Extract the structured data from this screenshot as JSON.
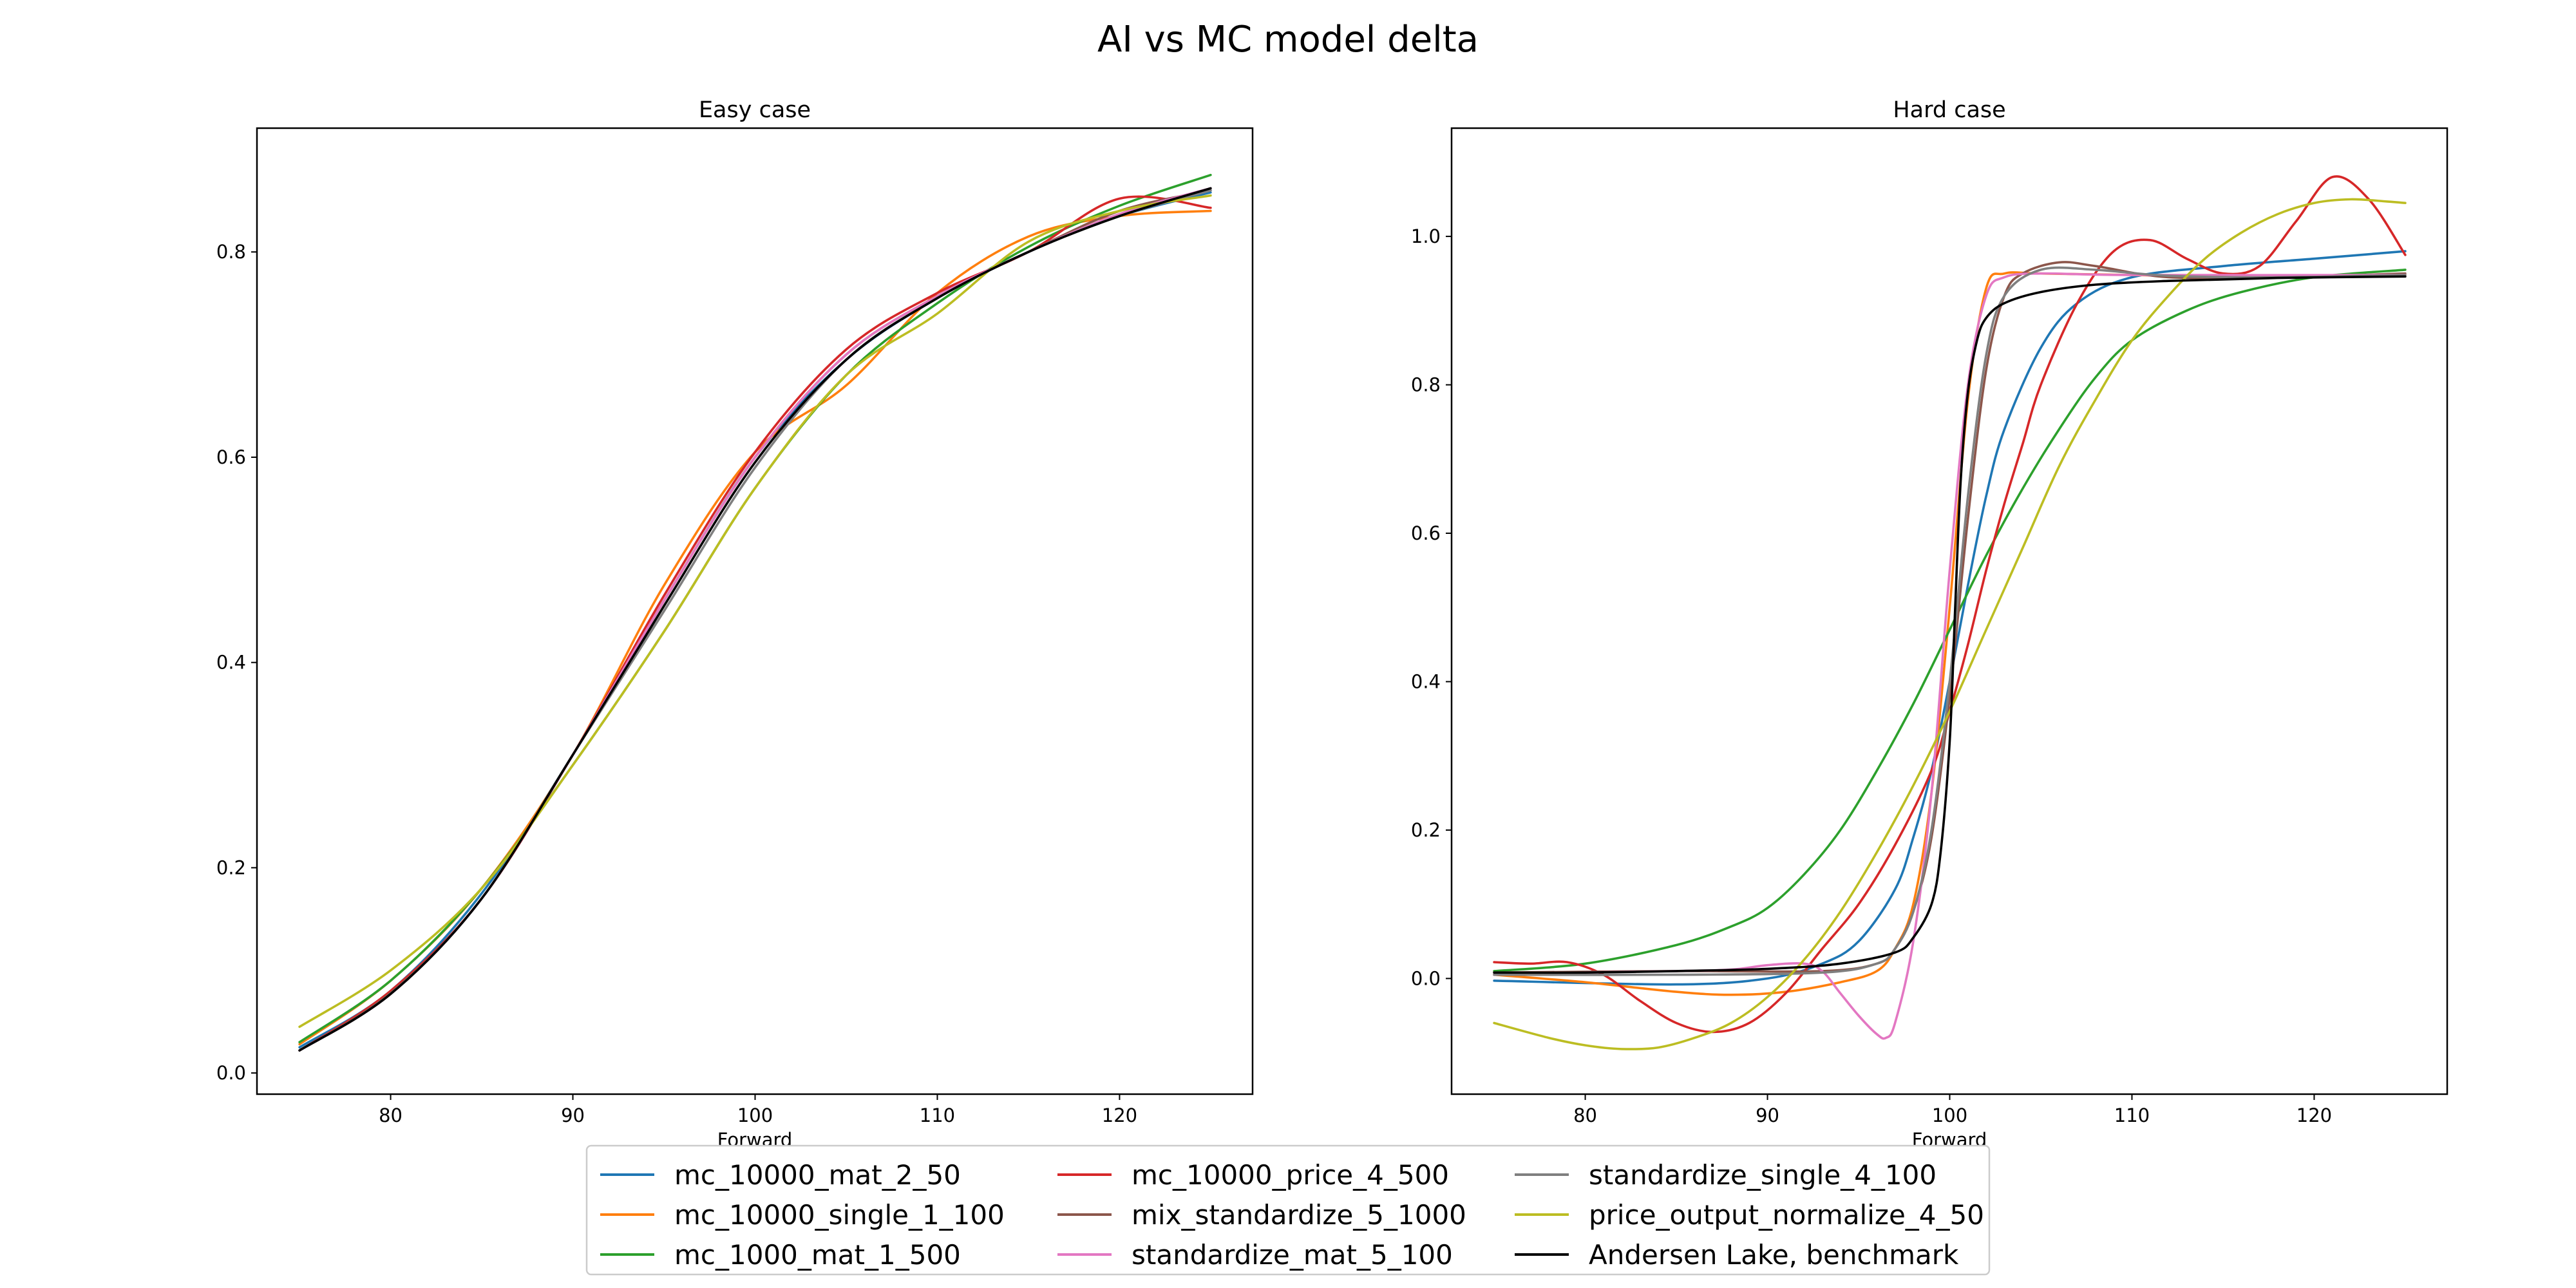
{
  "figure": {
    "title": "AI vs MC model delta"
  },
  "chart_data": [
    {
      "type": "line",
      "title": "Easy case",
      "xlabel": "Forward",
      "ylabel": "",
      "xlim": [
        72.7,
        127.3
      ],
      "ylim": [
        -0.02,
        0.92
      ],
      "xticks": [
        80,
        90,
        100,
        110,
        120
      ],
      "yticks": [
        0.0,
        0.2,
        0.4,
        0.6,
        0.8
      ],
      "ytick_labels": [
        "0.0",
        "0.2",
        "0.4",
        "0.6",
        "0.8"
      ],
      "x": [
        75,
        80,
        85,
        90,
        95,
        100,
        105,
        110,
        115,
        120,
        125
      ],
      "series": [
        {
          "name": "mc_10000_mat_2_50",
          "color": "#1f77b4",
          "values": [
            0.025,
            0.08,
            0.175,
            0.31,
            0.46,
            0.6,
            0.695,
            0.755,
            0.8,
            0.835,
            0.858
          ]
        },
        {
          "name": "mc_10000_single_1_100",
          "color": "#ff7f0e",
          "values": [
            0.028,
            0.09,
            0.18,
            0.31,
            0.475,
            0.605,
            0.67,
            0.76,
            0.815,
            0.835,
            0.84
          ]
        },
        {
          "name": "mc_1000_mat_1_500",
          "color": "#2ca02c",
          "values": [
            0.03,
            0.09,
            0.18,
            0.3,
            0.43,
            0.57,
            0.68,
            0.75,
            0.805,
            0.845,
            0.875
          ]
        },
        {
          "name": "mc_10000_price_4_500",
          "color": "#d62728",
          "values": [
            0.022,
            0.08,
            0.17,
            0.31,
            0.465,
            0.605,
            0.705,
            0.76,
            0.8,
            0.852,
            0.843
          ]
        },
        {
          "name": "mix_standardize_5_1000",
          "color": "#8c564b",
          "values": [
            0.022,
            0.078,
            0.17,
            0.31,
            0.46,
            0.6,
            0.7,
            0.757,
            0.8,
            0.84,
            0.86
          ]
        },
        {
          "name": "standardize_mat_5_100",
          "color": "#e377c2",
          "values": [
            0.022,
            0.077,
            0.17,
            0.31,
            0.46,
            0.6,
            0.7,
            0.757,
            0.8,
            0.837,
            0.862
          ]
        },
        {
          "name": "standardize_single_4_100",
          "color": "#7f7f7f",
          "values": [
            0.022,
            0.077,
            0.17,
            0.31,
            0.45,
            0.59,
            0.695,
            0.755,
            0.8,
            0.835,
            0.86
          ]
        },
        {
          "name": "price_output_normalize_4_50",
          "color": "#bcbd22",
          "values": [
            0.045,
            0.1,
            0.18,
            0.3,
            0.43,
            0.57,
            0.68,
            0.74,
            0.81,
            0.84,
            0.855
          ]
        },
        {
          "name": "Andersen Lake, benchmark",
          "color": "#000000",
          "values": [
            0.022,
            0.077,
            0.17,
            0.31,
            0.455,
            0.595,
            0.695,
            0.755,
            0.8,
            0.835,
            0.862
          ]
        }
      ]
    },
    {
      "type": "line",
      "title": "Hard case",
      "xlabel": "Forward",
      "ylabel": "",
      "xlim": [
        72.7,
        127.3
      ],
      "ylim": [
        -0.155,
        1.145
      ],
      "xticks": [
        80,
        90,
        100,
        110,
        120
      ],
      "yticks": [
        0.0,
        0.2,
        0.4,
        0.6,
        0.8,
        1.0
      ],
      "ytick_labels": [
        "0.0",
        "0.2",
        "0.4",
        "0.6",
        "0.8",
        "1.0"
      ],
      "series": [
        {
          "name": "mc_10000_mat_2_50",
          "color": "#1f77b4",
          "x": [
            75,
            85,
            90,
            93,
            95,
            97,
            98,
            99,
            100,
            101,
            102,
            103,
            105,
            107,
            110,
            115,
            120,
            125
          ],
          "values": [
            -0.003,
            -0.008,
            0.0,
            0.02,
            0.05,
            0.12,
            0.19,
            0.28,
            0.4,
            0.53,
            0.65,
            0.74,
            0.85,
            0.91,
            0.945,
            0.96,
            0.97,
            0.98
          ]
        },
        {
          "name": "mc_10000_single_1_100",
          "color": "#ff7f0e",
          "x": [
            75,
            80,
            85,
            88,
            91,
            94,
            96,
            97,
            98,
            99,
            100,
            101,
            102,
            103,
            105,
            110,
            115,
            125
          ],
          "values": [
            0.005,
            -0.005,
            -0.018,
            -0.022,
            -0.018,
            -0.005,
            0.01,
            0.04,
            0.1,
            0.25,
            0.5,
            0.78,
            0.93,
            0.95,
            0.95,
            0.948,
            0.946,
            0.948
          ]
        },
        {
          "name": "mc_1000_mat_1_500",
          "color": "#2ca02c",
          "x": [
            75,
            80,
            85,
            88,
            90,
            92,
            94,
            96,
            98,
            100,
            102,
            104,
            106,
            108,
            110,
            113,
            116,
            120,
            125
          ],
          "values": [
            0.01,
            0.02,
            0.045,
            0.07,
            0.095,
            0.14,
            0.2,
            0.28,
            0.37,
            0.47,
            0.57,
            0.66,
            0.74,
            0.81,
            0.86,
            0.9,
            0.925,
            0.945,
            0.955
          ]
        },
        {
          "name": "mc_10000_price_4_500",
          "color": "#d62728",
          "x": [
            75,
            77,
            79,
            81,
            83,
            85,
            87,
            89,
            91,
            93,
            95,
            97,
            99,
            100,
            101,
            102,
            103,
            104,
            105,
            107,
            109,
            111,
            113,
            115,
            117,
            119,
            121,
            123,
            125
          ],
          "values": [
            0.022,
            0.02,
            0.022,
            0.005,
            -0.03,
            -0.06,
            -0.072,
            -0.06,
            -0.02,
            0.04,
            0.1,
            0.18,
            0.28,
            0.36,
            0.45,
            0.55,
            0.64,
            0.72,
            0.8,
            0.91,
            0.98,
            0.995,
            0.97,
            0.95,
            0.96,
            1.02,
            1.08,
            1.05,
            0.975
          ]
        },
        {
          "name": "mix_standardize_5_1000",
          "color": "#8c564b",
          "x": [
            75,
            85,
            93,
            96,
            97,
            98,
            99,
            100,
            101,
            102,
            103,
            104,
            106,
            108,
            112,
            118,
            125
          ],
          "values": [
            0.008,
            0.01,
            0.01,
            0.02,
            0.04,
            0.09,
            0.19,
            0.38,
            0.62,
            0.82,
            0.92,
            0.95,
            0.965,
            0.96,
            0.945,
            0.945,
            0.95
          ]
        },
        {
          "name": "standardize_mat_5_100",
          "color": "#e377c2",
          "x": [
            75,
            80,
            85,
            88,
            90,
            92,
            93,
            94,
            95,
            96,
            96.5,
            97,
            98,
            99,
            100,
            101,
            102,
            103,
            105,
            110,
            125
          ],
          "values": [
            0.005,
            0.008,
            0.01,
            0.012,
            0.018,
            0.02,
            0.01,
            -0.02,
            -0.05,
            -0.075,
            -0.08,
            -0.06,
            0.05,
            0.25,
            0.55,
            0.8,
            0.92,
            0.945,
            0.95,
            0.948,
            0.948
          ]
        },
        {
          "name": "standardize_single_4_100",
          "color": "#7f7f7f",
          "x": [
            75,
            85,
            93,
            96,
            97,
            98,
            99,
            100,
            101,
            102,
            103,
            105,
            108,
            112,
            118,
            125
          ],
          "values": [
            0.005,
            0.005,
            0.008,
            0.02,
            0.04,
            0.09,
            0.2,
            0.4,
            0.65,
            0.84,
            0.92,
            0.955,
            0.955,
            0.947,
            0.945,
            0.948
          ]
        },
        {
          "name": "price_output_normalize_4_50",
          "color": "#bcbd22",
          "x": [
            75,
            78,
            80,
            82,
            84,
            86,
            88,
            90,
            92,
            94,
            96,
            98,
            100,
            102,
            104,
            106,
            108,
            110,
            112,
            114,
            116,
            118,
            120,
            122,
            124,
            125
          ],
          "values": [
            -0.06,
            -0.08,
            -0.09,
            -0.095,
            -0.093,
            -0.08,
            -0.06,
            -0.025,
            0.025,
            0.09,
            0.17,
            0.26,
            0.36,
            0.47,
            0.58,
            0.69,
            0.78,
            0.86,
            0.92,
            0.97,
            1.005,
            1.03,
            1.045,
            1.05,
            1.047,
            1.045
          ]
        },
        {
          "name": "Andersen Lake, benchmark",
          "color": "#000000",
          "x": [
            75,
            80,
            85,
            90,
            94,
            97,
            98,
            99,
            99.5,
            100,
            100.3,
            100.6,
            101,
            101.5,
            102,
            103,
            105,
            108,
            112,
            118,
            125
          ],
          "values": [
            0.008,
            0.008,
            0.01,
            0.013,
            0.02,
            0.035,
            0.055,
            0.1,
            0.17,
            0.32,
            0.5,
            0.67,
            0.79,
            0.86,
            0.89,
            0.91,
            0.925,
            0.935,
            0.94,
            0.944,
            0.946
          ]
        }
      ]
    }
  ],
  "legend": {
    "placement": "bottom-center",
    "columns": 3
  }
}
